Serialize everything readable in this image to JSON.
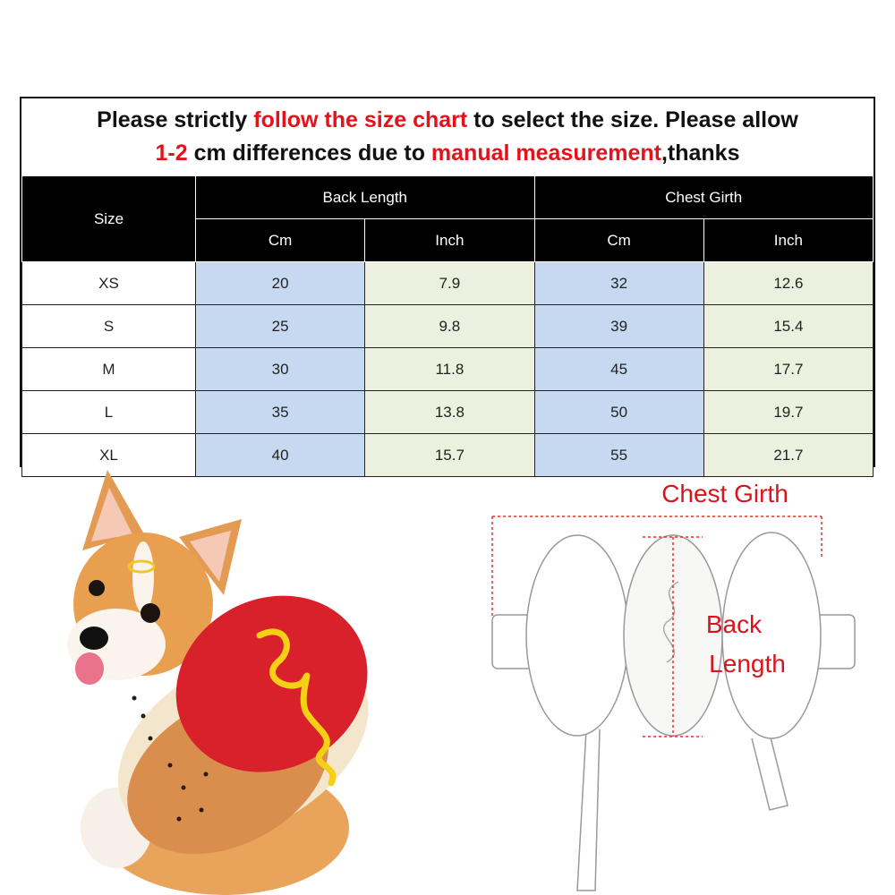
{
  "notice": {
    "lines": [
      [
        {
          "text": "Please strictly ",
          "color": "#111111"
        },
        {
          "text": "follow the size chart",
          "color": "#e3121b"
        },
        {
          "text": " to select the size. Please allow",
          "color": "#111111"
        }
      ],
      [
        {
          "text": "1-2",
          "color": "#e3121b"
        },
        {
          "text": " cm differences due to ",
          "color": "#111111"
        },
        {
          "text": "manual measurement",
          "color": "#e3121b"
        },
        {
          "text": ",thanks",
          "color": "#111111"
        }
      ]
    ]
  },
  "table": {
    "header": {
      "size": "Size",
      "groups": [
        "Back Length",
        "Chest Girth"
      ],
      "units": [
        "Cm",
        "Inch",
        "Cm",
        "Inch"
      ]
    },
    "column_colors": [
      "#ffffff",
      "#c6d9f0",
      "#ebf1de",
      "#c6d9f0",
      "#ebf1de"
    ],
    "rows": [
      [
        "XS",
        "20",
        "7.9",
        "32",
        "12.6"
      ],
      [
        "S",
        "25",
        "9.8",
        "39",
        "15.4"
      ],
      [
        "M",
        "30",
        "11.8",
        "45",
        "17.7"
      ],
      [
        "L",
        "35",
        "13.8",
        "50",
        "19.7"
      ],
      [
        "XL",
        "40",
        "15.7",
        "55",
        "21.7"
      ]
    ]
  },
  "diagram": {
    "chest_label": "Chest Girth",
    "back_label_lines": [
      "Back",
      "Length"
    ],
    "label_color": "#d9141c"
  }
}
